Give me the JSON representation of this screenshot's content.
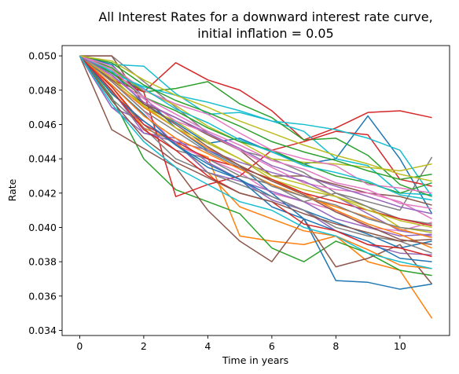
{
  "chart_data": {
    "type": "line",
    "title": [
      "All Interest Rates for a downward interest rate curve,",
      "initial inflation = 0.05"
    ],
    "xlabel": "Time in years",
    "ylabel": "Rate",
    "xlim": [
      -0.55,
      11.55
    ],
    "ylim": [
      0.0337,
      0.0506
    ],
    "xticks": [
      0,
      2,
      4,
      6,
      8,
      10
    ],
    "yticks": [
      0.034,
      0.036,
      0.038,
      0.04,
      0.042,
      0.044,
      0.046,
      0.048,
      0.05
    ],
    "grid": false,
    "legend": "none",
    "colors": [
      "#1f77b4",
      "#ff7f0e",
      "#2ca02c",
      "#d62728",
      "#9467bd",
      "#8c564b",
      "#e377c2",
      "#7f7f7f",
      "#bcbd22",
      "#17becf"
    ],
    "x": [
      0,
      1,
      2,
      3,
      4,
      5,
      6,
      7,
      8,
      9,
      10,
      11
    ],
    "series": [
      {
        "values": [
          0.05,
          0.0491,
          0.0472,
          0.0461,
          0.0449,
          0.0452,
          0.0444,
          0.0437,
          0.044,
          0.0465,
          0.044,
          0.0408
        ]
      },
      {
        "values": [
          0.05,
          0.0478,
          0.0462,
          0.0448,
          0.0441,
          0.0395,
          0.0392,
          0.039,
          0.0395,
          0.038,
          0.0375,
          0.0347
        ]
      },
      {
        "values": [
          0.05,
          0.0476,
          0.044,
          0.0422,
          0.0415,
          0.0408,
          0.0388,
          0.038,
          0.0392,
          0.0385,
          0.0375,
          0.0372
        ]
      },
      {
        "values": [
          0.05,
          0.049,
          0.0479,
          0.0496,
          0.0486,
          0.048,
          0.0468,
          0.0451,
          0.0458,
          0.0467,
          0.0468,
          0.0464
        ]
      },
      {
        "values": [
          0.05,
          0.048,
          0.0455,
          0.0452,
          0.0438,
          0.0428,
          0.0416,
          0.041,
          0.0398,
          0.039,
          0.0385,
          0.0384
        ]
      },
      {
        "values": [
          0.05,
          0.0457,
          0.0446,
          0.0435,
          0.041,
          0.0392,
          0.038,
          0.0405,
          0.0377,
          0.0382,
          0.039,
          0.0367
        ]
      },
      {
        "values": [
          0.05,
          0.0485,
          0.0468,
          0.0448,
          0.044,
          0.0432,
          0.042,
          0.0415,
          0.041,
          0.04,
          0.0398,
          0.0403
        ]
      },
      {
        "values": [
          0.05,
          0.05,
          0.0485,
          0.047,
          0.0455,
          0.0445,
          0.044,
          0.0432,
          0.042,
          0.0415,
          0.041,
          0.0441
        ]
      },
      {
        "values": [
          0.05,
          0.0488,
          0.047,
          0.0462,
          0.045,
          0.044,
          0.0428,
          0.0422,
          0.0418,
          0.0412,
          0.04,
          0.0397
        ]
      },
      {
        "values": [
          0.05,
          0.0495,
          0.0494,
          0.0478,
          0.0466,
          0.0467,
          0.0462,
          0.0456,
          0.044,
          0.0436,
          0.042,
          0.0419
        ]
      },
      {
        "values": [
          0.05,
          0.0495,
          0.0476,
          0.0458,
          0.0445,
          0.0436,
          0.042,
          0.0405,
          0.0369,
          0.0368,
          0.0364,
          0.0367
        ]
      },
      {
        "values": [
          0.05,
          0.0482,
          0.0458,
          0.045,
          0.0432,
          0.0412,
          0.0405,
          0.0398,
          0.0395,
          0.0387,
          0.0378,
          0.0376
        ]
      },
      {
        "values": [
          0.05,
          0.0493,
          0.0479,
          0.0481,
          0.0485,
          0.0472,
          0.0464,
          0.0451,
          0.0452,
          0.0442,
          0.0425,
          0.0418
        ]
      },
      {
        "values": [
          0.05,
          0.0486,
          0.0479,
          0.0418,
          0.0425,
          0.043,
          0.0445,
          0.045,
          0.0456,
          0.0454,
          0.0428,
          0.0424
        ]
      },
      {
        "values": [
          0.05,
          0.047,
          0.0462,
          0.0449,
          0.0432,
          0.0427,
          0.0421,
          0.0415,
          0.0405,
          0.04,
          0.0395,
          0.0396
        ]
      },
      {
        "values": [
          0.05,
          0.05,
          0.0472,
          0.0464,
          0.0454,
          0.0445,
          0.043,
          0.043,
          0.0425,
          0.042,
          0.0418,
          0.0413
        ]
      },
      {
        "values": [
          0.05,
          0.0488,
          0.0475,
          0.0462,
          0.0455,
          0.0445,
          0.0435,
          0.0426,
          0.0422,
          0.042,
          0.0415,
          0.0405
        ]
      },
      {
        "values": [
          0.05,
          0.0479,
          0.046,
          0.0445,
          0.044,
          0.043,
          0.0425,
          0.0415,
          0.042,
          0.0412,
          0.0405,
          0.0402
        ]
      },
      {
        "values": [
          0.05,
          0.0492,
          0.048,
          0.0471,
          0.0459,
          0.045,
          0.044,
          0.0438,
          0.0437,
          0.0435,
          0.0433,
          0.0437
        ]
      },
      {
        "values": [
          0.05,
          0.049,
          0.0482,
          0.0477,
          0.0473,
          0.0468,
          0.0462,
          0.046,
          0.0457,
          0.0452,
          0.0445,
          0.0418
        ]
      },
      {
        "values": [
          0.05,
          0.0483,
          0.0466,
          0.0448,
          0.0437,
          0.0428,
          0.0418,
          0.041,
          0.0403,
          0.0396,
          0.0388,
          0.0392
        ]
      },
      {
        "values": [
          0.05,
          0.0485,
          0.047,
          0.0458,
          0.0446,
          0.0436,
          0.0427,
          0.042,
          0.041,
          0.0402,
          0.0396,
          0.0388
        ]
      },
      {
        "values": [
          0.05,
          0.049,
          0.0476,
          0.0468,
          0.0458,
          0.045,
          0.0445,
          0.0437,
          0.043,
          0.0426,
          0.042,
          0.0426
        ]
      },
      {
        "values": [
          0.05,
          0.0482,
          0.046,
          0.045,
          0.044,
          0.0435,
          0.0428,
          0.042,
          0.0415,
          0.041,
          0.0405,
          0.0401
        ]
      },
      {
        "values": [
          0.05,
          0.047,
          0.0455,
          0.045,
          0.0445,
          0.0438,
          0.0432,
          0.0427,
          0.0418,
          0.0408,
          0.0398,
          0.0395
        ]
      },
      {
        "values": [
          0.05,
          0.0486,
          0.0472,
          0.046,
          0.0447,
          0.0436,
          0.0427,
          0.0419,
          0.0409,
          0.0401,
          0.0393,
          0.039
        ]
      },
      {
        "values": [
          0.05,
          0.0494,
          0.048,
          0.0472,
          0.0466,
          0.0455,
          0.0445,
          0.044,
          0.0436,
          0.0425,
          0.0423,
          0.042
        ]
      },
      {
        "values": [
          0.05,
          0.0475,
          0.0458,
          0.044,
          0.0432,
          0.0425,
          0.0418,
          0.041,
          0.04,
          0.0395,
          0.0392,
          0.0385
        ]
      },
      {
        "values": [
          0.05,
          0.0487,
          0.0471,
          0.0458,
          0.0449,
          0.044,
          0.043,
          0.0425,
          0.0418,
          0.041,
          0.0404,
          0.04
        ]
      },
      {
        "values": [
          0.05,
          0.0491,
          0.0481,
          0.0469,
          0.0461,
          0.0451,
          0.0444,
          0.0436,
          0.0432,
          0.0427,
          0.0419,
          0.0416
        ]
      },
      {
        "values": [
          0.05,
          0.0478,
          0.0462,
          0.0448,
          0.0435,
          0.0428,
          0.0412,
          0.0405,
          0.0398,
          0.0392,
          0.0382,
          0.038
        ]
      },
      {
        "values": [
          0.05,
          0.0483,
          0.0465,
          0.0452,
          0.0443,
          0.0434,
          0.0425,
          0.0418,
          0.0412,
          0.0406,
          0.0399,
          0.0394
        ]
      },
      {
        "values": [
          0.05,
          0.0496,
          0.0483,
          0.0474,
          0.0467,
          0.0459,
          0.045,
          0.0444,
          0.0439,
          0.0433,
          0.0428,
          0.0431
        ]
      },
      {
        "values": [
          0.05,
          0.048,
          0.0457,
          0.0445,
          0.043,
          0.042,
          0.0415,
          0.0402,
          0.0398,
          0.039,
          0.0388,
          0.0383
        ]
      },
      {
        "values": [
          0.05,
          0.0489,
          0.0473,
          0.0464,
          0.0455,
          0.0446,
          0.0436,
          0.043,
          0.0424,
          0.0418,
          0.0412,
          0.0408
        ]
      },
      {
        "values": [
          0.05,
          0.0474,
          0.0452,
          0.0438,
          0.0429,
          0.042,
          0.0415,
          0.0408,
          0.0402,
          0.0397,
          0.0392,
          0.0393
        ]
      },
      {
        "values": [
          0.05,
          0.0492,
          0.0476,
          0.0466,
          0.0456,
          0.0448,
          0.0439,
          0.0434,
          0.0426,
          0.0422,
          0.0414,
          0.0411
        ]
      },
      {
        "values": [
          0.05,
          0.0485,
          0.0468,
          0.0456,
          0.0444,
          0.0435,
          0.0424,
          0.0418,
          0.0413,
          0.0405,
          0.04,
          0.0398
        ]
      },
      {
        "values": [
          0.05,
          0.0497,
          0.0486,
          0.0477,
          0.047,
          0.0462,
          0.0455,
          0.0448,
          0.0442,
          0.0437,
          0.0431,
          0.0427
        ]
      },
      {
        "values": [
          0.05,
          0.0472,
          0.045,
          0.0435,
          0.0425,
          0.0415,
          0.041,
          0.04,
          0.0395,
          0.0385,
          0.038,
          0.0376
        ]
      }
    ]
  }
}
